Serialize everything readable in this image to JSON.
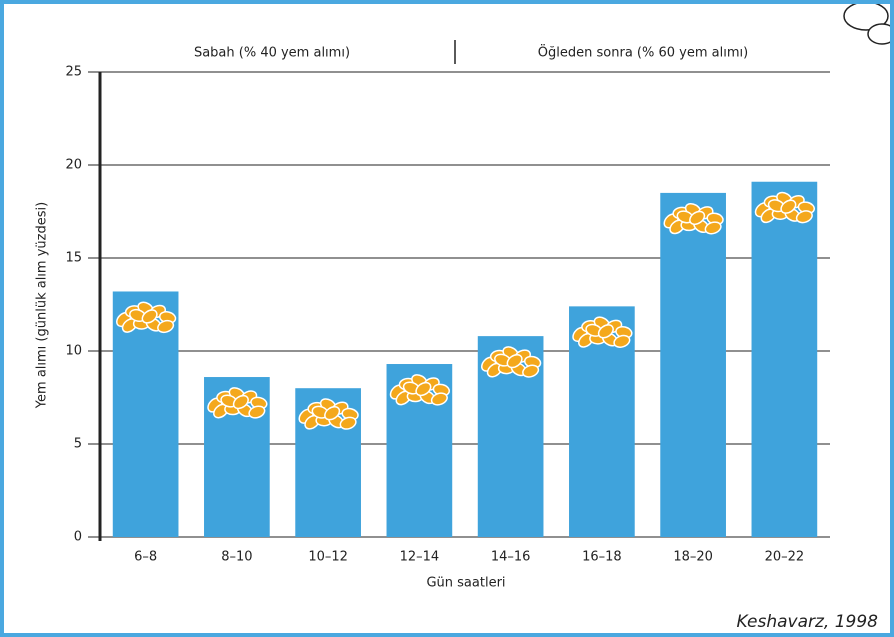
{
  "chart_data": {
    "type": "bar",
    "annotations": [
      "Sabah (% 40 yem alımı)",
      "Öğleden sonra (% 60 yem alımı)"
    ],
    "x_label": "Gün saatleri",
    "y_label": "Yem alımı (günlük alım yüzdesi)",
    "source": "Keshavarz, 1998",
    "categories": [
      "6–8",
      "8–10",
      "10–12",
      "12–14",
      "14–16",
      "16–18",
      "18–20",
      "20–22"
    ],
    "values": [
      13.2,
      8.6,
      8.0,
      9.3,
      10.8,
      12.4,
      18.5,
      19.1
    ],
    "color": "#3fa3dc",
    "ylim": [
      0,
      25
    ],
    "yticks": [
      0,
      5,
      10,
      15,
      20,
      25
    ],
    "grid": true
  }
}
